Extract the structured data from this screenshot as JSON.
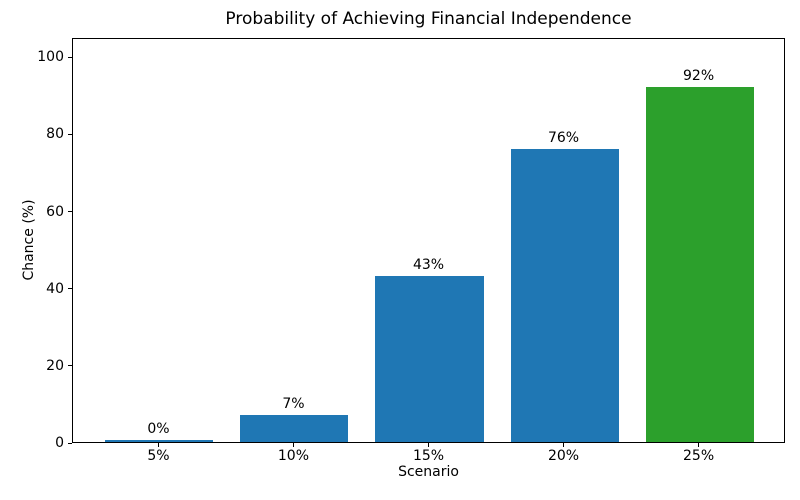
{
  "chart_data": {
    "type": "bar",
    "title": "Probability of Achieving Financial Independence",
    "xlabel": "Scenario",
    "ylabel": "Chance (%)",
    "categories": [
      "5%",
      "10%",
      "15%",
      "20%",
      "25%"
    ],
    "values": [
      0,
      7,
      43,
      76,
      92
    ],
    "bar_labels": [
      "0%",
      "7%",
      "43%",
      "76%",
      "92%"
    ],
    "bar_colors": [
      "#1f77b4",
      "#1f77b4",
      "#1f77b4",
      "#1f77b4",
      "#2ca02c"
    ],
    "yticks": [
      0,
      20,
      40,
      60,
      80,
      100
    ],
    "ylim": [
      0,
      105
    ],
    "grid": false,
    "legend_position": "none",
    "colors": {
      "bar_blue": "#1f77b4",
      "bar_green": "#2ca02c",
      "axis": "#000000",
      "background": "#ffffff"
    }
  }
}
